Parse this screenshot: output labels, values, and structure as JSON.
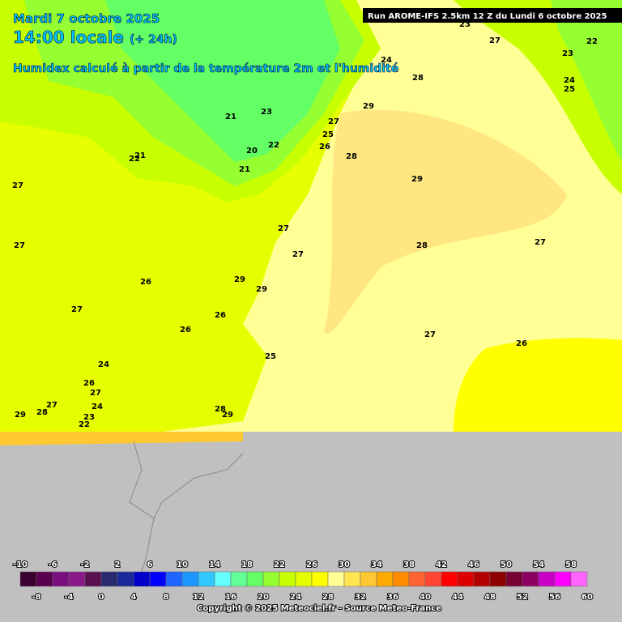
{
  "header": {
    "date": "Mardi 7 octobre 2025",
    "time": "14:00 locale",
    "lead": "(+ 24h)",
    "subtitle": "Humidex calculé à partir de la température 2m et l'humidité",
    "run": "Run AROME-IFS 2.5km 12 Z du Lundi 6 octobre 2025"
  },
  "contour_labels": [
    23,
    27,
    22,
    23,
    24,
    28,
    24,
    25,
    29,
    27,
    23,
    21,
    25,
    22,
    26,
    20,
    28,
    21,
    22,
    21,
    29,
    27,
    27,
    27,
    27,
    28,
    27,
    29,
    26,
    29,
    27,
    26,
    26,
    27,
    26,
    25,
    24,
    26,
    27,
    27,
    28,
    29,
    24,
    23,
    22,
    28,
    29
  ],
  "legend": {
    "ticks": [
      -10,
      -8,
      -6,
      -4,
      -2,
      0,
      2,
      4,
      6,
      8,
      10,
      12,
      14,
      16,
      18,
      20,
      22,
      24,
      26,
      28,
      30,
      32,
      34,
      36,
      38,
      40,
      42,
      44,
      46,
      48,
      50,
      52,
      54,
      56,
      58,
      60
    ],
    "colors": [
      "#3c0030",
      "#5a0050",
      "#7a1080",
      "#8a1a8a",
      "#5a1050",
      "#2a2a70",
      "#1a2a9a",
      "#0000c8",
      "#0000ff",
      "#1e64ff",
      "#1e96ff",
      "#32c8ff",
      "#64ffff",
      "#64ff96",
      "#64ff64",
      "#96ff32",
      "#c8ff00",
      "#e6ff00",
      "#ffff00",
      "#ffff96",
      "#ffe650",
      "#ffc832",
      "#ffaa00",
      "#ff8c00",
      "#ff6432",
      "#ff4632",
      "#ff0000",
      "#dc0000",
      "#b40000",
      "#8c0000",
      "#780032",
      "#8c0064",
      "#c800c8",
      "#ff00ff",
      "#ff64ff"
    ]
  },
  "footer": {
    "copyright": "Copyright © 2025 Meteociel.fr - Source Meteo-France"
  }
}
